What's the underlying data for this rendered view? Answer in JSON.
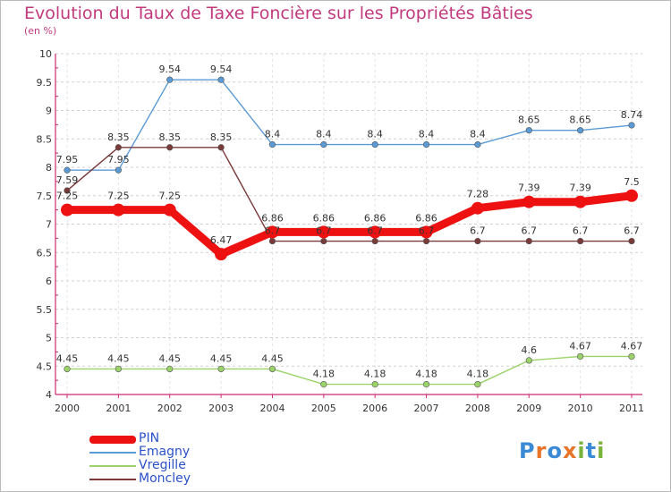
{
  "title": "Evolution du Taux de Taxe Foncière sur les Propriétés Bâties",
  "unit_label": "(en %)",
  "logo": {
    "text": "Proxiti",
    "letters": [
      {
        "ch": "P",
        "color": "#3a8ad6"
      },
      {
        "ch": "r",
        "color": "#e8742a"
      },
      {
        "ch": "o",
        "color": "#3a8ad6"
      },
      {
        "ch": "x",
        "color": "#e8742a"
      },
      {
        "ch": "i",
        "color": "#7ab33a"
      },
      {
        "ch": "t",
        "color": "#3a8ad6"
      },
      {
        "ch": "i",
        "color": "#7ab33a"
      }
    ]
  },
  "chart_data": {
    "type": "line",
    "title": "Evolution du Taux de Taxe Foncière sur les Propriétés Bâties",
    "ylabel": "(en %)",
    "xlabel": "",
    "x": [
      "2000",
      "2001",
      "2002",
      "2003",
      "2004",
      "2005",
      "2006",
      "2007",
      "2008",
      "2009",
      "2010",
      "2011"
    ],
    "ylim": [
      4,
      10
    ],
    "yticks": [
      "4",
      "4.5",
      "5",
      "5.5",
      "6",
      "6.5",
      "7",
      "7.5",
      "8",
      "8.5",
      "9",
      "9.5",
      "10"
    ],
    "grid": true,
    "legend_position": "bottom-left",
    "series": [
      {
        "name": "PIN",
        "color": "#ee1111",
        "emphasis": true,
        "values": [
          7.25,
          7.25,
          7.25,
          6.47,
          6.86,
          6.86,
          6.86,
          6.86,
          7.28,
          7.39,
          7.39,
          7.5
        ],
        "labels": [
          "7.25",
          "7.25",
          "7.25",
          "6.47",
          "6.86",
          "6.86",
          "6.86",
          "6.86",
          "7.28",
          "7.39",
          "7.39",
          "7.5"
        ]
      },
      {
        "name": "Emagny",
        "color": "#5b9bd5",
        "emphasis": false,
        "values": [
          7.95,
          7.95,
          9.54,
          9.54,
          8.4,
          8.4,
          8.4,
          8.4,
          8.4,
          8.65,
          8.65,
          8.74
        ],
        "labels": [
          "7.95",
          "7.95",
          "9.54",
          "9.54",
          "8.4",
          "8.4",
          "8.4",
          "8.4",
          "8.4",
          "8.65",
          "8.65",
          "8.74"
        ]
      },
      {
        "name": "Vregille",
        "color": "#9bd36a",
        "emphasis": false,
        "values": [
          4.45,
          4.45,
          4.45,
          4.45,
          4.45,
          4.18,
          4.18,
          4.18,
          4.18,
          4.6,
          4.67,
          4.67
        ],
        "labels": [
          "4.45",
          "4.45",
          "4.45",
          "4.45",
          "4.45",
          "4.18",
          "4.18",
          "4.18",
          "4.18",
          "4.6",
          "4.67",
          "4.67"
        ]
      },
      {
        "name": "Moncley",
        "color": "#7a3a3a",
        "emphasis": false,
        "values": [
          7.59,
          8.35,
          8.35,
          8.35,
          6.7,
          6.7,
          6.7,
          6.7,
          6.7,
          6.7,
          6.7,
          6.7
        ],
        "labels": [
          "7.59",
          "8.35",
          "8.35",
          "8.35",
          "6.7",
          "6.7",
          "6.7",
          "6.7",
          "6.7",
          "6.7",
          "6.7",
          "6.7"
        ]
      }
    ]
  }
}
